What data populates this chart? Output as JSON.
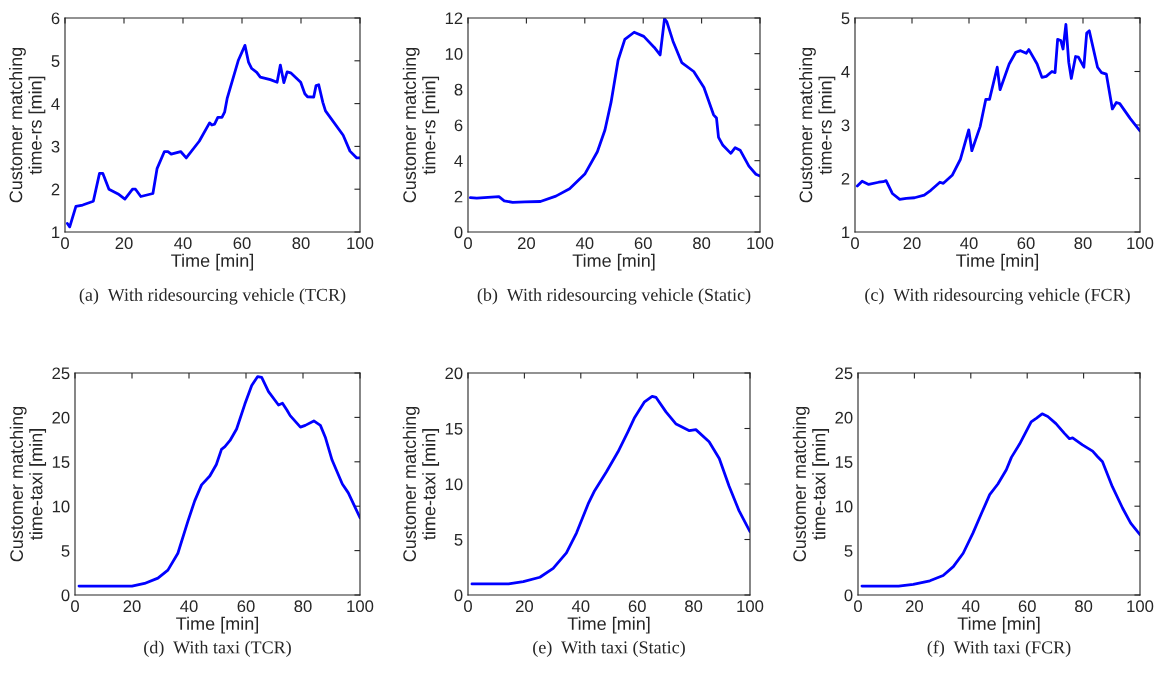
{
  "chart_data": [
    {
      "type": "line",
      "title": "(a)  With ridesourcing vehicle (TCR)",
      "xlabel": "Time [min]",
      "ylabel": "Customer matching\ntime-rs [min]",
      "xlim": [
        0,
        100
      ],
      "xticks": [
        0,
        20,
        40,
        60,
        80,
        100
      ],
      "ylim": [
        1,
        6
      ],
      "yticks": [
        1,
        2,
        3,
        4,
        5,
        6
      ],
      "grid": false,
      "legend": false,
      "marker": "none",
      "line_style": "solid",
      "series": [
        {
          "color": "#0000ff",
          "x": [
            0.8,
            1.6,
            3.7,
            6,
            9.6,
            11.7,
            12.8,
            14.9,
            18,
            20.3,
            22.9,
            23.9,
            25.7,
            29.8,
            31.2,
            33.7,
            34.9,
            36,
            39.2,
            41.1,
            45.5,
            49,
            49.8,
            50.7,
            51.8,
            53.2,
            54.1,
            55,
            58.7,
            61,
            62.2,
            63.3,
            65,
            66.2,
            69.6,
            71.9,
            73,
            74.2,
            75.3,
            76.5,
            79.9,
            81.3,
            82.2,
            84.3,
            85.1,
            86,
            87.4,
            88.3,
            94.3,
            96.6,
            98.9,
            100
          ],
          "values": [
            1.2,
            1.12,
            1.6,
            1.63,
            1.72,
            2.37,
            2.37,
            2.0,
            1.89,
            1.77,
            2.0,
            2.0,
            1.83,
            1.9,
            2.48,
            2.88,
            2.88,
            2.82,
            2.88,
            2.73,
            3.12,
            3.55,
            3.5,
            3.52,
            3.68,
            3.68,
            3.8,
            4.13,
            5.0,
            5.36,
            4.97,
            4.82,
            4.73,
            4.62,
            4.56,
            4.5,
            4.9,
            4.49,
            4.74,
            4.72,
            4.5,
            4.23,
            4.16,
            4.15,
            4.42,
            4.44,
            4.03,
            3.83,
            3.26,
            2.89,
            2.73,
            2.73
          ]
        }
      ]
    },
    {
      "type": "line",
      "title": "(b)  With ridesourcing vehicle (Static)",
      "xlabel": "Time [min]",
      "ylabel": "Customer matching\ntime-rs [min]",
      "xlim": [
        0,
        100
      ],
      "xticks": [
        0,
        20,
        40,
        60,
        80,
        100
      ],
      "ylim": [
        0,
        12
      ],
      "yticks": [
        0,
        2,
        4,
        6,
        8,
        10,
        12
      ],
      "grid": false,
      "legend": false,
      "marker": "none",
      "line_style": "solid",
      "series": [
        {
          "color": "#0000ff",
          "x": [
            0.8,
            3,
            10.6,
            12.4,
            15.3,
            19.5,
            24.8,
            30.1,
            34.8,
            40.1,
            44.3,
            46.9,
            49,
            51.4,
            53.7,
            56.9,
            60.2,
            63.8,
            65.8,
            67.3,
            68.1,
            70.2,
            73.2,
            77.3,
            80.8,
            84.1,
            85.1,
            85.8,
            87.3,
            90,
            91.5,
            93.2,
            96.2,
            98.6,
            99.8
          ],
          "values": [
            1.93,
            1.9,
            1.98,
            1.75,
            1.66,
            1.69,
            1.71,
            2.01,
            2.43,
            3.27,
            4.5,
            5.72,
            7.28,
            9.63,
            10.8,
            11.2,
            10.97,
            10.35,
            9.93,
            11.96,
            11.78,
            10.7,
            9.5,
            9.0,
            8.1,
            6.57,
            6.39,
            5.31,
            4.86,
            4.41,
            4.73,
            4.59,
            3.69,
            3.24,
            3.15
          ]
        }
      ]
    },
    {
      "type": "line",
      "title": "(c)  With ridesourcing vehicle (FCR)",
      "xlabel": "Time [min]",
      "ylabel": "Customer matching\ntime-rs [min]",
      "xlim": [
        0,
        100
      ],
      "xticks": [
        0,
        20,
        40,
        60,
        80,
        100
      ],
      "ylim": [
        1,
        5
      ],
      "yticks": [
        1,
        2,
        3,
        4,
        5
      ],
      "grid": false,
      "legend": false,
      "marker": "none",
      "line_style": "solid",
      "series": [
        {
          "color": "#0000ff",
          "x": [
            0.8,
            2.5,
            4.8,
            8.3,
            9.9,
            10.9,
            13.1,
            15.7,
            18,
            20.9,
            24.3,
            26.6,
            29.8,
            31,
            34.1,
            37,
            39.9,
            41,
            43.9,
            45.9,
            47.2,
            49.9,
            50.9,
            54.1,
            56.4,
            58.1,
            60.1,
            61,
            63.9,
            65.6,
            67.1,
            69.1,
            70.2,
            71.1,
            72.2,
            73,
            74,
            75,
            75.9,
            77.4,
            78.4,
            80.3,
            81.3,
            82.2,
            85.1,
            86.5,
            88.2,
            90.3,
            91.7,
            92.9,
            96.6,
            100
          ],
          "values": [
            1.86,
            1.95,
            1.89,
            1.93,
            1.94,
            1.96,
            1.72,
            1.61,
            1.63,
            1.64,
            1.69,
            1.78,
            1.93,
            1.91,
            2.06,
            2.36,
            2.91,
            2.52,
            2.97,
            3.48,
            3.48,
            4.08,
            3.66,
            4.14,
            4.36,
            4.39,
            4.34,
            4.41,
            4.14,
            3.89,
            3.91,
            4.0,
            3.98,
            4.6,
            4.58,
            4.42,
            4.88,
            4.17,
            3.87,
            4.28,
            4.27,
            4.08,
            4.72,
            4.76,
            4.08,
            3.98,
            3.95,
            3.3,
            3.42,
            3.4,
            3.12,
            2.89
          ]
        }
      ]
    },
    {
      "type": "line",
      "title": "(d)  With taxi (TCR)",
      "xlabel": "Time [min]",
      "ylabel": "Customer matching\ntime-taxi [min]",
      "xlim": [
        0,
        100
      ],
      "xticks": [
        0,
        20,
        40,
        60,
        80,
        100
      ],
      "ylim": [
        0,
        25
      ],
      "yticks": [
        0,
        5,
        10,
        15,
        20,
        25
      ],
      "grid": false,
      "legend": false,
      "marker": "none",
      "line_style": "solid",
      "series": [
        {
          "color": "#0000ff",
          "x": [
            1.4,
            20,
            24.4,
            29.1,
            32.6,
            36.1,
            39.6,
            42,
            44.4,
            47.3,
            49.6,
            51.4,
            52.6,
            54.4,
            56.7,
            59.6,
            62,
            64.1,
            65.5,
            67.9,
            71.4,
            72.8,
            74.4,
            75.5,
            79.1,
            80.8,
            83.8,
            86.1,
            87.9,
            90.2,
            93.8,
            95.9,
            100
          ],
          "values": [
            1.0,
            1.0,
            1.3,
            1.9,
            2.8,
            4.7,
            8.3,
            10.6,
            12.4,
            13.4,
            14.7,
            16.4,
            16.7,
            17.4,
            18.7,
            21.5,
            23.6,
            24.6,
            24.5,
            22.9,
            21.4,
            21.6,
            20.8,
            20.2,
            18.9,
            19.1,
            19.6,
            19.1,
            17.7,
            15.2,
            12.5,
            11.5,
            8.7
          ]
        }
      ]
    },
    {
      "type": "line",
      "title": "(e)  With taxi (Static)",
      "xlabel": "Time [min]",
      "ylabel": "Customer matching\ntime-taxi [min]",
      "xlim": [
        0,
        100
      ],
      "xticks": [
        0,
        20,
        40,
        60,
        80,
        100
      ],
      "ylim": [
        0,
        20
      ],
      "yticks": [
        0,
        5,
        10,
        15,
        20
      ],
      "grid": false,
      "legend": false,
      "marker": "none",
      "line_style": "solid",
      "series": [
        {
          "color": "#0000ff",
          "x": [
            1.4,
            14.4,
            19.6,
            25.5,
            30.2,
            34.9,
            38.5,
            42.6,
            44.9,
            49.1,
            53.2,
            56.7,
            59.1,
            62.6,
            65.3,
            66.7,
            70.2,
            73.8,
            78.5,
            80.8,
            85.5,
            89.1,
            92.6,
            96.1,
            100
          ],
          "values": [
            1.0,
            1.0,
            1.2,
            1.6,
            2.4,
            3.8,
            5.6,
            8.2,
            9.4,
            11.1,
            12.9,
            14.7,
            16.0,
            17.4,
            17.9,
            17.8,
            16.5,
            15.4,
            14.8,
            14.9,
            13.8,
            12.3,
            9.8,
            7.6,
            5.7
          ]
        }
      ]
    },
    {
      "type": "line",
      "title": "(f)  With taxi (FCR)",
      "xlabel": "Time [min]",
      "ylabel": "Customer matching\ntime-taxi [min]",
      "xlim": [
        0,
        100
      ],
      "xticks": [
        0,
        20,
        40,
        60,
        80,
        100
      ],
      "ylim": [
        0,
        25
      ],
      "yticks": [
        0,
        5,
        10,
        15,
        20,
        25
      ],
      "grid": false,
      "legend": false,
      "marker": "none",
      "line_style": "solid",
      "series": [
        {
          "color": "#0000ff",
          "x": [
            1.4,
            14.4,
            19.6,
            25.5,
            30.2,
            33.8,
            37.3,
            40.8,
            43.8,
            46.7,
            49.6,
            52.6,
            54.4,
            57.3,
            61.4,
            63.2,
            65.3,
            67.3,
            70.2,
            73.2,
            75,
            76.1,
            79.6,
            83.2,
            84.9,
            86.7,
            90.2,
            93.8,
            96.7,
            100
          ],
          "values": [
            1.0,
            1.0,
            1.2,
            1.6,
            2.2,
            3.2,
            4.7,
            7.0,
            9.2,
            11.3,
            12.5,
            14.1,
            15.5,
            17.0,
            19.5,
            19.9,
            20.4,
            20.1,
            19.3,
            18.2,
            17.6,
            17.7,
            16.9,
            16.2,
            15.6,
            15.0,
            12.2,
            9.8,
            8.1,
            6.8
          ]
        }
      ]
    }
  ]
}
